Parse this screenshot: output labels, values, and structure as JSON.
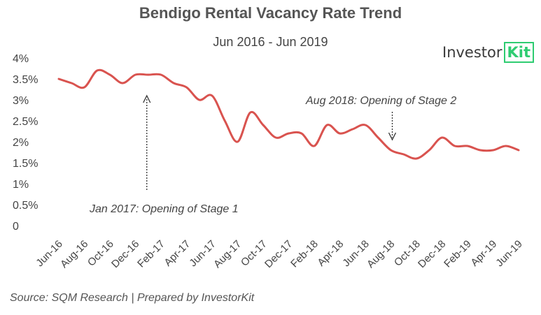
{
  "chart_data": {
    "type": "line",
    "title": "Bendigo Rental Vacancy Rate Trend",
    "subtitle": "Jun 2016 - Jun 2019",
    "ylim": [
      0,
      4
    ],
    "y_ticks": [
      "0",
      "0.5%",
      "1%",
      "1.5%",
      "2%",
      "2.5%",
      "3%",
      "3.5%",
      "4%"
    ],
    "x_tick_labels": [
      "Jun-16",
      "Aug-16",
      "Oct-16",
      "Dec-16",
      "Feb-17",
      "Apr-17",
      "Jun-17",
      "Aug-17",
      "Oct-17",
      "Dec-17",
      "Feb-18",
      "Apr-18",
      "Jun-18",
      "Aug-18",
      "Oct-18",
      "Dec-18",
      "Feb-19",
      "Apr-19",
      "Jun-19"
    ],
    "x": [
      0,
      1,
      2,
      3,
      4,
      5,
      6,
      7,
      8,
      9,
      10,
      11,
      12,
      13,
      14,
      15,
      16,
      17,
      18,
      19,
      20,
      21,
      22,
      23,
      24,
      25,
      26,
      27,
      28,
      29,
      30,
      31,
      32,
      33,
      34,
      35,
      36
    ],
    "series": [
      {
        "color": "#d9534f",
        "values": [
          3.5,
          3.4,
          3.3,
          3.7,
          3.6,
          3.4,
          3.6,
          3.6,
          3.6,
          3.4,
          3.3,
          3.0,
          3.1,
          2.5,
          2.0,
          2.7,
          2.4,
          2.1,
          2.2,
          2.2,
          1.9,
          2.4,
          2.2,
          2.3,
          2.4,
          2.1,
          1.8,
          1.7,
          1.6,
          1.8,
          2.1,
          1.9,
          1.9,
          1.8,
          1.8,
          1.9,
          1.8
        ]
      }
    ],
    "annotations": [
      {
        "text": "Jan 2017: Opening of Stage 1",
        "x": 7,
        "y": 3.6
      },
      {
        "text": "Aug 2018: Opening of Stage 2",
        "x": 26,
        "y": 2.1
      }
    ],
    "grid": false,
    "legend": "none"
  },
  "logo": {
    "part1": "Investor",
    "part2": "Kit",
    "accent": "#2ecc71"
  },
  "source": "Source: SQM Research | Prepared by InvestorKit"
}
